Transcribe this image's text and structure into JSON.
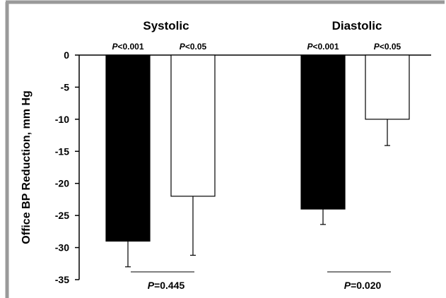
{
  "chart_data": {
    "type": "bar",
    "ylabel": "Office BP Reduction, mm Hg",
    "ylim": [
      -35,
      0
    ],
    "yticks": [
      "0",
      "-5",
      "-10",
      "-15",
      "-20",
      "-25",
      "-30",
      "-35"
    ],
    "yticks_values": [
      0,
      -5,
      -10,
      -15,
      -20,
      -25,
      -30,
      -35
    ],
    "grid": false,
    "groups": [
      {
        "title": "Systolic",
        "bars": [
          {
            "value": -29,
            "error": 4,
            "fill": "#000000",
            "p_prefix": "P",
            "p_suffix": "<0.001"
          },
          {
            "value": -22,
            "error": 9.2,
            "fill": "#ffffff",
            "p_prefix": "P",
            "p_suffix": "<0.05"
          }
        ],
        "comparison": {
          "p_prefix": "P",
          "p_suffix": "=0.445"
        }
      },
      {
        "title": "Diastolic",
        "bars": [
          {
            "value": -24,
            "error": 2.4,
            "fill": "#000000",
            "p_prefix": "P",
            "p_suffix": "<0.001"
          },
          {
            "value": -10,
            "error": 4.1,
            "fill": "#ffffff",
            "p_prefix": "P",
            "p_suffix": "<0.05"
          }
        ],
        "comparison": {
          "p_prefix": "P",
          "p_suffix": "=0.020"
        }
      }
    ]
  },
  "colors": {
    "frame": "#9a9a9a",
    "axis": "#000000"
  }
}
